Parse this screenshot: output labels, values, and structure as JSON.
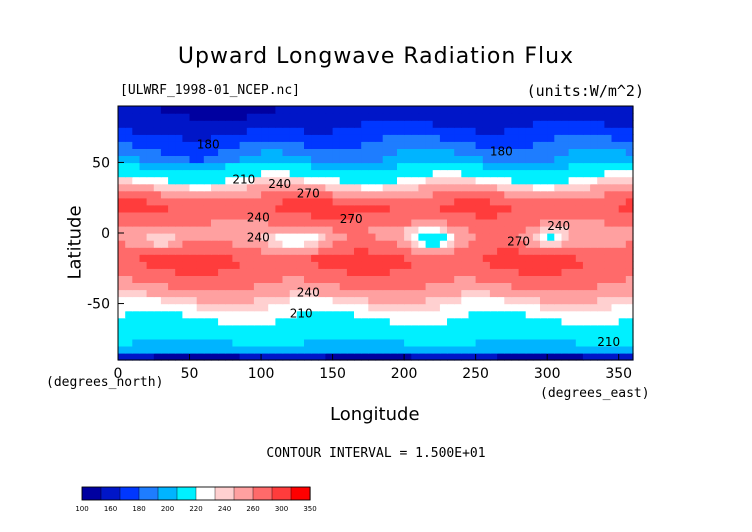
{
  "title": "Upward Longwave Radiation Flux",
  "file_label": "[ULWRF_1998-01_NCEP.nc]",
  "units_label": "(units:W/m^2)",
  "xlabel": "Longitude",
  "ylabel": "Latitude",
  "x_units": "(degrees_east)",
  "y_units": "(degrees_north)",
  "contour_interval_text": "CONTOUR INTERVAL = 1.500E+01",
  "chart_data": {
    "type": "heatmap",
    "title": "Upward Longwave Radiation Flux",
    "xlabel": "Longitude",
    "ylabel": "Latitude",
    "xlim": [
      0,
      360
    ],
    "ylim": [
      -90,
      90
    ],
    "xticks": [
      0,
      50,
      100,
      150,
      200,
      250,
      300,
      350
    ],
    "yticks": [
      -50,
      0,
      50
    ],
    "colorbar": {
      "boundaries": [
        100,
        160,
        180,
        200,
        220,
        240,
        260,
        300,
        350
      ],
      "tick_labels": [
        "100",
        "160",
        "180",
        "200",
        "220",
        "240",
        "260",
        "300",
        "350"
      ],
      "colors": [
        "#0000a0",
        "#0016c8",
        "#0037ff",
        "#1e7dff",
        "#00b4ff",
        "#00f0ff",
        "#ffffff",
        "#ffd0d0",
        "#ffa0a0",
        "#ff6a6a",
        "#ff3c3c",
        "#ff0000"
      ]
    },
    "contour_labels": [
      {
        "text": "180",
        "lon": 55,
        "lat": 60
      },
      {
        "text": "180",
        "lon": 260,
        "lat": 55
      },
      {
        "text": "210",
        "lon": 80,
        "lat": 35
      },
      {
        "text": "240",
        "lon": 105,
        "lat": 32
      },
      {
        "text": "270",
        "lon": 125,
        "lat": 25
      },
      {
        "text": "240",
        "lon": 90,
        "lat": 8
      },
      {
        "text": "270",
        "lon": 155,
        "lat": 7
      },
      {
        "text": "240",
        "lon": 90,
        "lat": -6
      },
      {
        "text": "240",
        "lon": 300,
        "lat": 2
      },
      {
        "text": "270",
        "lon": 272,
        "lat": -9
      },
      {
        "text": "240",
        "lon": 125,
        "lat": -45
      },
      {
        "text": "210",
        "lon": 120,
        "lat": -60
      },
      {
        "text": "210",
        "lon": 335,
        "lat": -80
      }
    ],
    "zonal_profile_approx": [
      {
        "lat": 90,
        "value": 160
      },
      {
        "lat": 70,
        "value": 175
      },
      {
        "lat": 50,
        "value": 195
      },
      {
        "lat": 35,
        "value": 230
      },
      {
        "lat": 20,
        "value": 285
      },
      {
        "lat": 0,
        "value": 255
      },
      {
        "lat": -20,
        "value": 290
      },
      {
        "lat": -35,
        "value": 265
      },
      {
        "lat": -50,
        "value": 230
      },
      {
        "lat": -65,
        "value": 215
      },
      {
        "lat": -85,
        "value": 190
      }
    ]
  }
}
